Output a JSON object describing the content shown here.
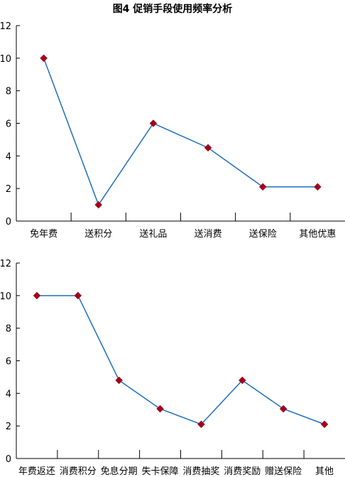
{
  "title": "图4  促销手段使用频率分析",
  "colors": {
    "line": "#1f6fbf",
    "marker": "#a3001b",
    "axis": "#000000"
  },
  "chart_data": [
    {
      "type": "line",
      "title": "图4  促销手段使用频率分析",
      "categories": [
        "免年费",
        "送积分",
        "送礼品",
        "送消费",
        "送保险",
        "其他优惠"
      ],
      "series": [
        {
          "values": [
            10,
            1,
            6,
            4.5,
            2.1,
            2.1
          ]
        }
      ],
      "ylim": [
        0,
        12
      ],
      "yticks": [
        0,
        2,
        4,
        6,
        8,
        10,
        12
      ],
      "grid": false,
      "marker": "diamond"
    },
    {
      "type": "line",
      "categories": [
        "年费返还",
        "消费积分",
        "免息分期",
        "失卡保障",
        "消费抽奖",
        "消费奖励",
        "赠送保险",
        "其他"
      ],
      "series": [
        {
          "values": [
            10,
            10,
            4.8,
            3.05,
            2.1,
            4.8,
            3.05,
            2.1
          ]
        }
      ],
      "ylim": [
        0,
        12
      ],
      "yticks": [
        0,
        2,
        4,
        6,
        8,
        10,
        12
      ],
      "grid": false,
      "marker": "diamond"
    }
  ]
}
